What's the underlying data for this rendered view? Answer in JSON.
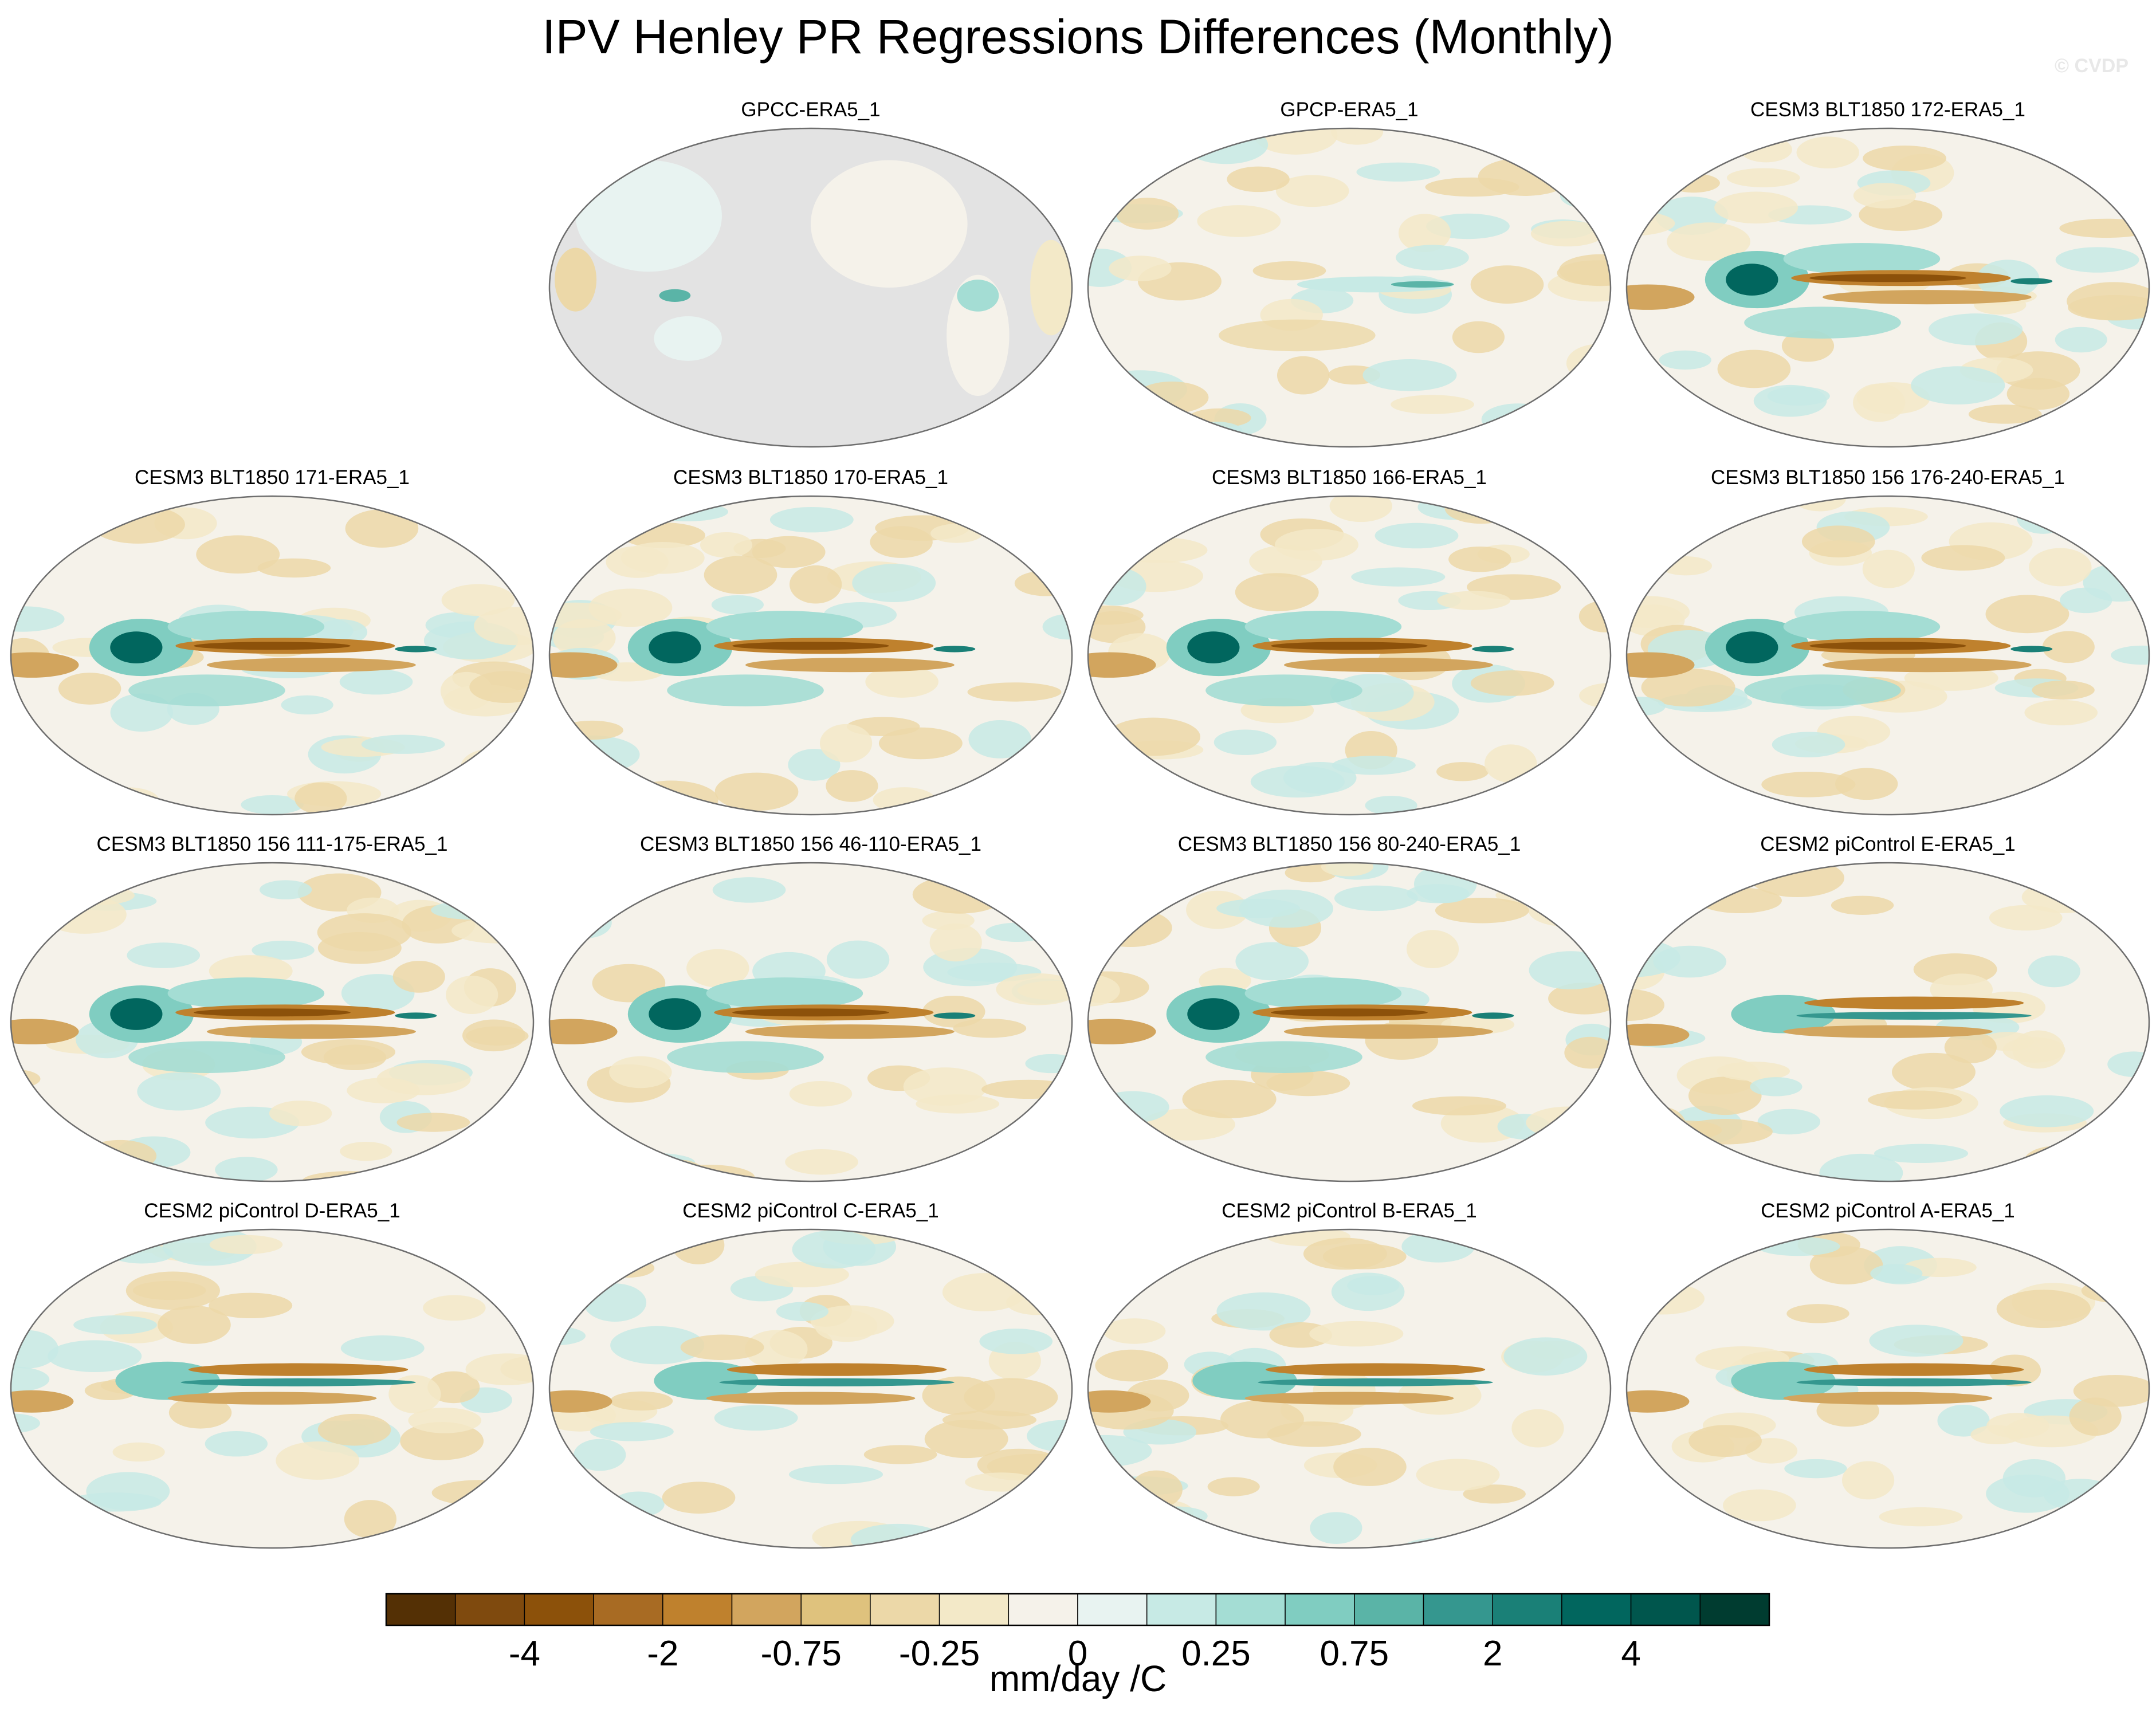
{
  "title": "IPV Henley PR Regressions Differences (Monthly)",
  "watermark": "© CVDP",
  "panels": [
    {
      "label": "GPCC-ERA5_1",
      "style": "gpcc"
    },
    {
      "label": "GPCP-ERA5_1",
      "style": "weak"
    },
    {
      "label": "CESM3 BLT1850 172-ERA5_1",
      "style": "strong"
    },
    {
      "label": "CESM3 BLT1850 171-ERA5_1",
      "style": "strong"
    },
    {
      "label": "CESM3 BLT1850 170-ERA5_1",
      "style": "strong"
    },
    {
      "label": "CESM3 BLT1850 166-ERA5_1",
      "style": "strong"
    },
    {
      "label": "CESM3 BLT1850 156 176-240-ERA5_1",
      "style": "strong"
    },
    {
      "label": "CESM3 BLT1850 156 111-175-ERA5_1",
      "style": "strong"
    },
    {
      "label": "CESM3 BLT1850 156 46-110-ERA5_1",
      "style": "strong"
    },
    {
      "label": "CESM3 BLT1850 156 80-240-ERA5_1",
      "style": "strong"
    },
    {
      "label": "CESM2 piControl E-ERA5_1",
      "style": "cesm2"
    },
    {
      "label": "CESM2 piControl D-ERA5_1",
      "style": "cesm2"
    },
    {
      "label": "CESM2 piControl C-ERA5_1",
      "style": "cesm2"
    },
    {
      "label": "CESM2 piControl B-ERA5_1",
      "style": "cesm2"
    },
    {
      "label": "CESM2 piControl A-ERA5_1",
      "style": "cesm2"
    }
  ],
  "chart_data": {
    "type": "heatmap",
    "projection": "robinson (pacific-centered)",
    "colorbar": {
      "colors": [
        "#543005",
        "#7f4a0e",
        "#8c510a",
        "#a86b23",
        "#bf812d",
        "#d2a55e",
        "#dfc27d",
        "#ecd8a8",
        "#f3e9c8",
        "#f5f2ea",
        "#e8f3f1",
        "#c7eae5",
        "#a4ddd4",
        "#80cdc1",
        "#5ab4a7",
        "#35978f",
        "#1a8077",
        "#01665e",
        "#00564d",
        "#003c30"
      ],
      "tick_labels": [
        "-4",
        "-2",
        "-0.75",
        "-0.25",
        "0",
        "0.25",
        "0.75",
        "2",
        "4"
      ],
      "tick_boundary_index": [
        2,
        4,
        6,
        8,
        10,
        12,
        14,
        16,
        18
      ],
      "units": "mm/day /C"
    },
    "missing_color": "#e3e3e3"
  }
}
